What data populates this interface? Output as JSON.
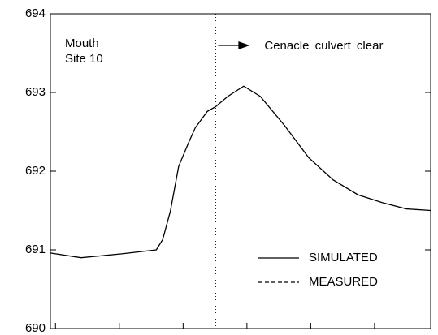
{
  "chart_data": {
    "type": "line",
    "x": [
      20.92,
      21.4,
      22.04,
      22.58,
      22.68,
      22.8,
      22.93,
      23.09,
      23.19,
      23.38,
      23.51,
      23.7,
      23.95,
      24.21,
      24.59,
      24.97,
      25.35,
      25.74,
      26.12,
      26.5,
      26.88
    ],
    "series": [
      {
        "name": "SIMULATED",
        "color": "#000000",
        "dash": "solid",
        "values": [
          690.96,
          690.9,
          690.95,
          691.0,
          691.13,
          691.49,
          692.06,
          692.37,
          692.55,
          692.76,
          692.82,
          692.95,
          693.08,
          692.95,
          692.58,
          692.17,
          691.89,
          691.7,
          691.6,
          691.52,
          691.5
        ]
      },
      {
        "name": "MEASURED",
        "color": "#000000",
        "dash": "dashed",
        "values": [
          null,
          null,
          null,
          null,
          null,
          null,
          null,
          null,
          null,
          null,
          null,
          null,
          null,
          null,
          null,
          null,
          null,
          null,
          null,
          null,
          null
        ]
      }
    ],
    "xlim": [
      20.92,
      26.88
    ],
    "xticks": [
      21,
      22,
      23,
      24,
      25,
      26
    ],
    "ylim": [
      690,
      694
    ],
    "yticks": [
      690,
      691,
      692,
      693,
      694
    ],
    "legend": "lower right",
    "annotations": {
      "site": [
        "Mouth",
        "Site 10"
      ],
      "event_x": 23.51,
      "event_label": "Cenacle culvert clear"
    }
  }
}
